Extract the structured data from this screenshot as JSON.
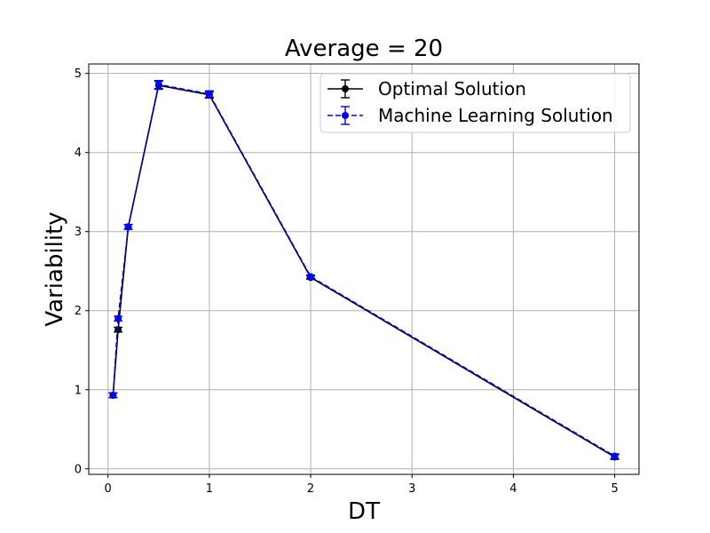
{
  "chart_data": {
    "type": "line",
    "title": "Average = 20",
    "xlabel": "DT",
    "ylabel": "Variability",
    "xlim": [
      -0.19,
      5.24
    ],
    "ylim": [
      -0.07,
      5.12
    ],
    "xticks": [
      0,
      1,
      2,
      3,
      4,
      5
    ],
    "yticks": [
      0,
      1,
      2,
      3,
      4,
      5
    ],
    "grid": true,
    "legend_position": "top-right",
    "x": [
      0.05,
      0.1,
      0.2,
      0.5,
      1,
      2,
      5
    ],
    "series": [
      {
        "name": "Optimal Solution",
        "color": "#000000",
        "line_style": "solid",
        "marker": "circle",
        "values": [
          0.93,
          1.76,
          3.06,
          4.85,
          4.73,
          2.42,
          0.15
        ],
        "errors": [
          0.03,
          0.03,
          0.03,
          0.05,
          0.04,
          0.02,
          0.03
        ]
      },
      {
        "name": "Machine Learning Solution",
        "color": "#0000ff",
        "line_style": "dashed",
        "marker": "circle",
        "values": [
          0.93,
          1.9,
          3.06,
          4.86,
          4.74,
          2.43,
          0.16
        ],
        "errors": [
          0.03,
          0.03,
          0.03,
          0.05,
          0.04,
          0.02,
          0.03
        ]
      }
    ]
  }
}
